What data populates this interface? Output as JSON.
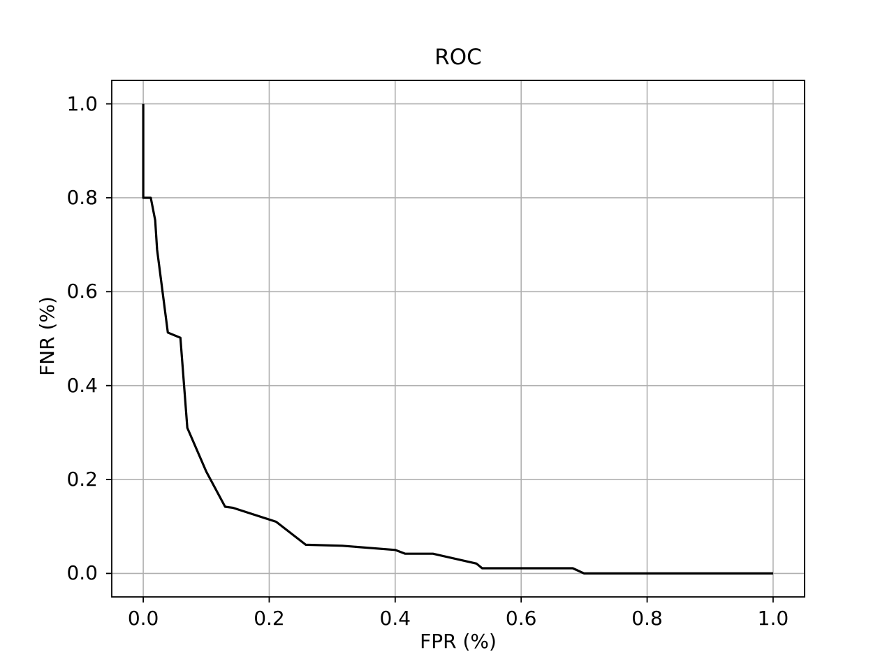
{
  "figure": {
    "background": "#ffffff",
    "text_color": "#000000"
  },
  "chart_data": {
    "type": "line",
    "title": "ROC",
    "xlabel": "FPR (%)",
    "ylabel": "FNR (%)",
    "xlim": [
      -0.05,
      1.05
    ],
    "ylim": [
      -0.05,
      1.05
    ],
    "xticks": [
      0.0,
      0.2,
      0.4,
      0.6,
      0.8,
      1.0
    ],
    "yticks": [
      0.0,
      0.2,
      0.4,
      0.6,
      0.8,
      1.0
    ],
    "xtick_labels": [
      "0.0",
      "0.2",
      "0.4",
      "0.6",
      "0.8",
      "1.0"
    ],
    "ytick_labels": [
      "0.0",
      "0.2",
      "0.4",
      "0.6",
      "0.8",
      "1.0"
    ],
    "grid": true,
    "grid_color": "#b0b0b0",
    "spine_color": "#000000",
    "legend": "none",
    "series": [
      {
        "name": "ROC curve",
        "color": "#000000",
        "points": [
          [
            0.0,
            1.0
          ],
          [
            0.0,
            0.8
          ],
          [
            0.012,
            0.8
          ],
          [
            0.019,
            0.752
          ],
          [
            0.022,
            0.69
          ],
          [
            0.039,
            0.513
          ],
          [
            0.059,
            0.502
          ],
          [
            0.07,
            0.31
          ],
          [
            0.1,
            0.217
          ],
          [
            0.13,
            0.142
          ],
          [
            0.142,
            0.14
          ],
          [
            0.211,
            0.11
          ],
          [
            0.258,
            0.061
          ],
          [
            0.316,
            0.059
          ],
          [
            0.4,
            0.05
          ],
          [
            0.416,
            0.042
          ],
          [
            0.46,
            0.042
          ],
          [
            0.529,
            0.021
          ],
          [
            0.538,
            0.011
          ],
          [
            0.682,
            0.011
          ],
          [
            0.7,
            0.0
          ],
          [
            1.0,
            0.0
          ]
        ]
      }
    ]
  }
}
